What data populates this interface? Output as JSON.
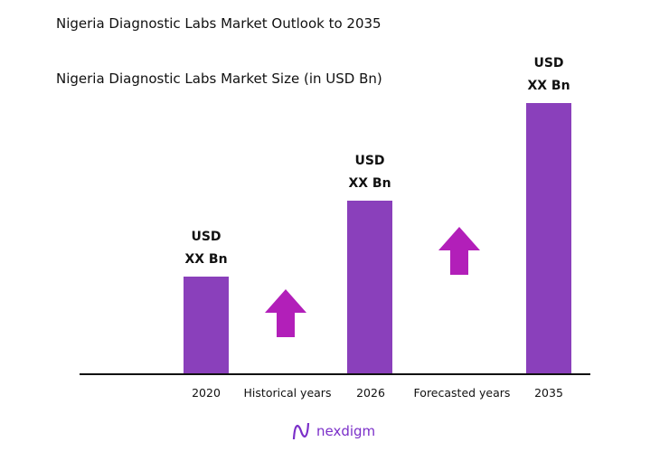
{
  "title": "Nigeria Diagnostic Labs Market Outlook to 2035",
  "chart_data": {
    "type": "bar",
    "title": "Nigeria Diagnostic Labs Market Size (in USD Bn)",
    "categories": [
      "2020",
      "2026",
      "2035"
    ],
    "values": [
      36,
      64,
      100
    ],
    "data_labels": [
      [
        "USD",
        "XX Bn"
      ],
      [
        "USD",
        "XX Bn"
      ],
      [
        "USD",
        "XX Bn"
      ]
    ],
    "period_labels": [
      "Historical years",
      "Forecasted years"
    ],
    "bar_color": "#8a40bb",
    "arrow_color": "#b21fb9",
    "grid": false,
    "yaxis_visible": false
  },
  "logo": {
    "text": "nexdigm"
  }
}
